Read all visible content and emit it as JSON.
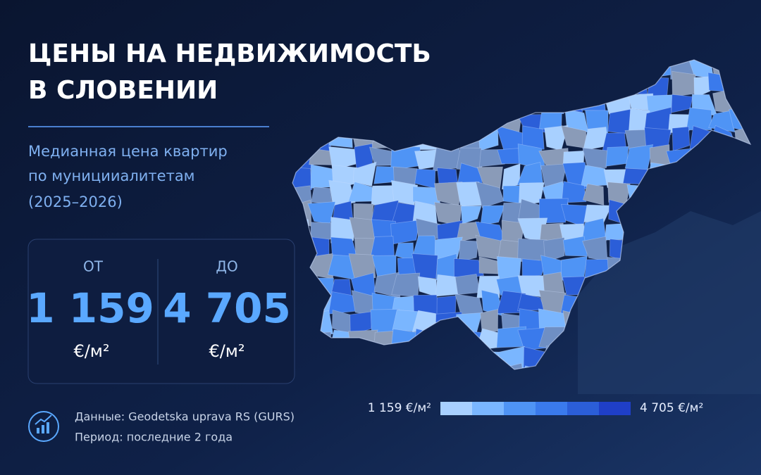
{
  "header": {
    "title": [
      "ЦЕНЫ НА НЕДВИЖИМОСТЬ",
      "В СЛОВЕНИИ"
    ],
    "subtitle": [
      "Медианная цена квартир",
      "по муницииалитетам",
      "(2025–2026)"
    ]
  },
  "stats": [
    {
      "label": "ОТ",
      "value": "1 159",
      "unit": "€/м²"
    },
    {
      "label": "ДО",
      "value": "4 705",
      "unit": "€/м²"
    }
  ],
  "legend": {
    "min_label": "1 159 €/м²",
    "max_label": "4 705 €/м²"
  },
  "source": [
    "Данные: Geodetska uprava RS (GURS)",
    "Период: последние 2 года"
  ]
}
